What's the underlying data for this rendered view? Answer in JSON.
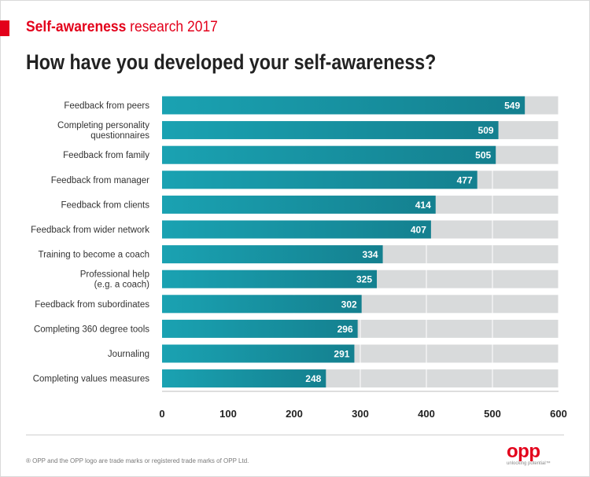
{
  "header": {
    "report_title_strong": "Self-awareness",
    "report_title_light": "research 2017",
    "question": "How have you developed your self-awareness?"
  },
  "footer": {
    "trademark": "® OPP and the OPP logo are trade marks or registered trade marks of OPP Ltd.",
    "logo_word": "opp",
    "logo_tagline": "unlocking potential™"
  },
  "colors": {
    "brand_red": "#e3001b",
    "bar_fill": "#1aa2b2",
    "bar_track": "#d8dadb"
  },
  "chart_data": {
    "type": "bar",
    "orientation": "horizontal",
    "categories": [
      "Feedback from peers",
      "Completing personality questionnaires",
      "Feedback from family",
      "Feedback from manager",
      "Feedback from clients",
      "Feedback from wider network",
      "Training to become a coach",
      "Professional help (e.g. a coach)",
      "Feedback from subordinates",
      "Completing 360 degree tools",
      "Journaling",
      "Completing values measures"
    ],
    "values": [
      549,
      509,
      505,
      477,
      414,
      407,
      334,
      325,
      302,
      296,
      291,
      248
    ],
    "xlim": [
      0,
      600
    ],
    "xticks": [
      0,
      100,
      200,
      300,
      400,
      500,
      600
    ],
    "grid": true,
    "data_labels": true
  }
}
